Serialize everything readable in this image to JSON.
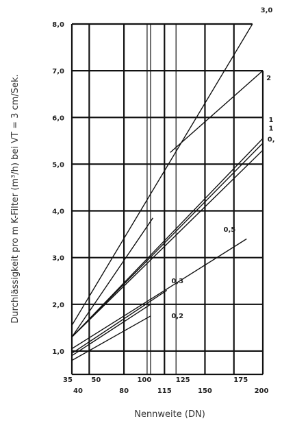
{
  "chart_data": {
    "type": "line",
    "title": "",
    "xlabel": "Nennweite (DN)",
    "ylabel": "Durchlässigkeit pro m K-Filter (m³/h) bei VT = 3 cm/Sek.",
    "xlim": [
      35,
      200
    ],
    "ylim": [
      0.5,
      8.0
    ],
    "x_ticks_top": [
      "35",
      "50",
      "100",
      "125",
      "175"
    ],
    "x_ticks_top_values": [
      35,
      50,
      100,
      125,
      175
    ],
    "x_ticks_bottom": [
      "40",
      "80",
      "115",
      "150",
      "200"
    ],
    "x_ticks_bottom_values": [
      40,
      80,
      115,
      150,
      200
    ],
    "y_ticks": [
      "1,0",
      "2,0",
      "3,0",
      "4,0",
      "5,0",
      "6,0",
      "7,0",
      "8,0"
    ],
    "y_tick_values": [
      1,
      2,
      3,
      4,
      5,
      6,
      7,
      8
    ],
    "grid_x": [
      35,
      50,
      80,
      100,
      115,
      125,
      150,
      175,
      200
    ],
    "grid_y": [
      1,
      2,
      3,
      4,
      5,
      6,
      7,
      8
    ],
    "series": [
      {
        "name": "3,0",
        "x": [
          35,
          191
        ],
        "y": [
          1.55,
          8.0
        ]
      },
      {
        "name": "2",
        "x": [
          35,
          105
        ],
        "y": [
          1.3,
          3.85
        ]
      },
      {
        "name": "2",
        "x": [
          120,
          200
        ],
        "y": [
          5.25,
          7.0
        ]
      },
      {
        "name": "1",
        "x": [
          35,
          200
        ],
        "y": [
          1.3,
          5.55
        ]
      },
      {
        "name": "1",
        "x": [
          35,
          200
        ],
        "y": [
          1.3,
          5.45
        ]
      },
      {
        "name": "0,",
        "x": [
          35,
          200
        ],
        "y": [
          1.3,
          5.3
        ]
      },
      {
        "name": "0,5",
        "x": [
          35,
          186
        ],
        "y": [
          1.05,
          3.4
        ]
      },
      {
        "name": "0,3",
        "x": [
          35,
          117
        ],
        "y": [
          0.95,
          2.3
        ]
      },
      {
        "name": "",
        "x": [
          35,
          103
        ],
        "y": [
          0.9,
          2.0
        ]
      },
      {
        "name": "0,2",
        "x": [
          35,
          103
        ],
        "y": [
          0.8,
          1.75
        ]
      }
    ],
    "series_label_positions": [
      {
        "text": "3,0",
        "x": 198,
        "y": 8.25
      },
      {
        "text": "2",
        "x": 203,
        "y": 6.8
      },
      {
        "text": "1",
        "x": 205,
        "y": 5.9
      },
      {
        "text": "1",
        "x": 205,
        "y": 5.72
      },
      {
        "text": "0,",
        "x": 204,
        "y": 5.48
      },
      {
        "text": "0,5",
        "x": 166,
        "y": 3.55
      },
      {
        "text": "0,3",
        "x": 121,
        "y": 2.45
      },
      {
        "text": "0,2",
        "x": 121,
        "y": 1.7
      }
    ]
  }
}
